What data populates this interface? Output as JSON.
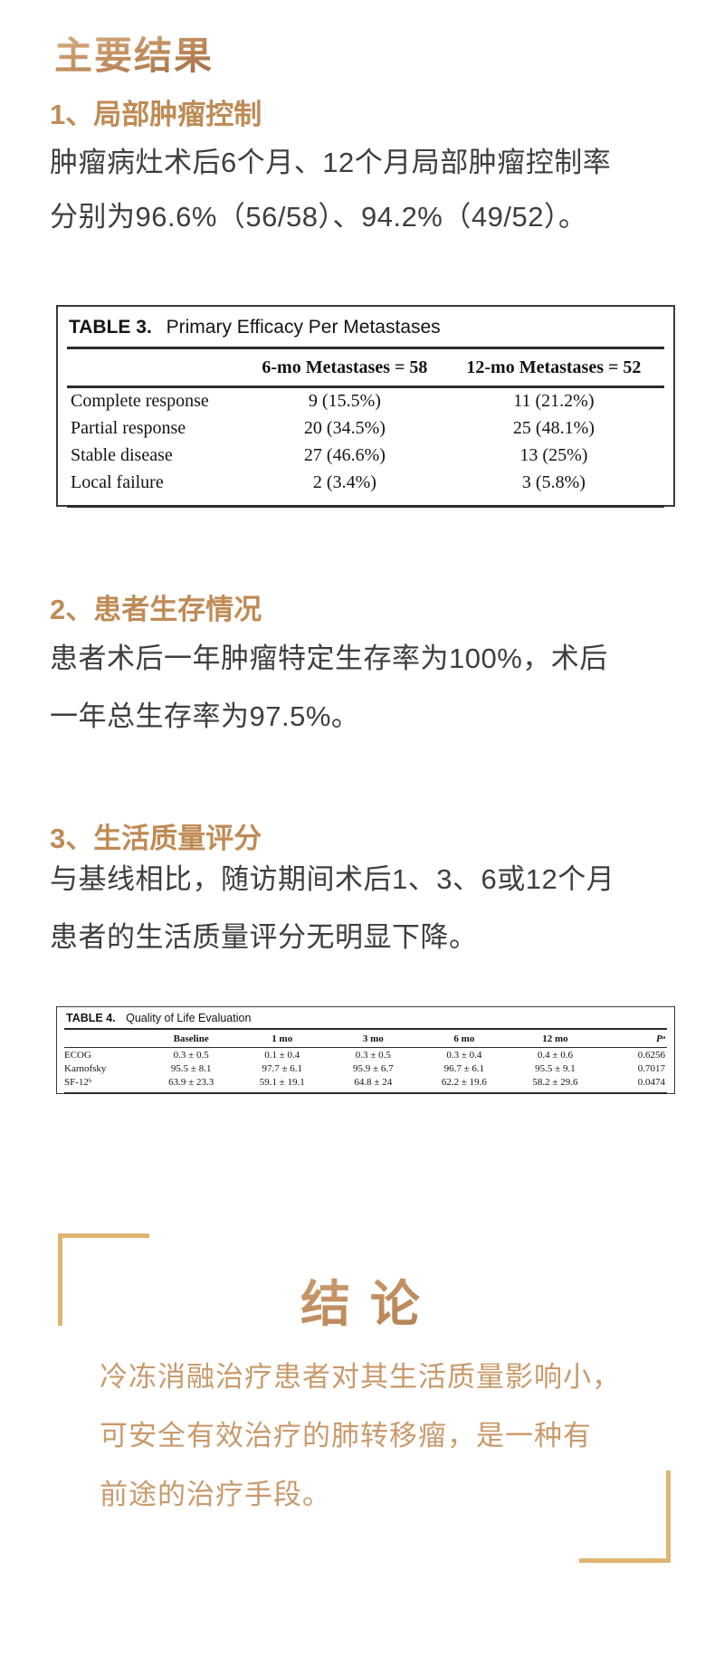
{
  "page": {
    "title": "主要结果",
    "background_color": "#ffffff",
    "accent_gold": "#bf8b55",
    "gradient_gold_light": "#dcb386",
    "gradient_gold_dark": "#9c6a3c",
    "bracket_color": "#dfb472",
    "body_text_color": "#3e3e3e",
    "conclusion_text_color": "#c89a6b"
  },
  "sections": [
    {
      "heading": "1、局部肿瘤控制",
      "lines": [
        "肿瘤病灶术后6个月、12个月局部肿瘤控制率",
        "分别为96.6%（56/58）、94.2%（49/52）。"
      ]
    },
    {
      "heading": "2、患者生存情况",
      "lines": [
        "患者术后一年肿瘤特定生存率为100%，术后",
        "一年总生存率为97.5%。"
      ]
    },
    {
      "heading": "3、生活质量评分",
      "lines": [
        "与基线相比，随访期间术后1、3、6或12个月",
        "患者的生活质量评分无明显下降。"
      ]
    }
  ],
  "table3": {
    "label": "TABLE 3.",
    "title": "Primary Efficacy Per Metastases",
    "col_headers": [
      "6-mo Metastases = 58",
      "12-mo Metastases = 52"
    ],
    "rows": [
      {
        "name": "Complete response",
        "m6": "9 (15.5%)",
        "m12": "11 (21.2%)"
      },
      {
        "name": "Partial response",
        "m6": "20 (34.5%)",
        "m12": "25 (48.1%)"
      },
      {
        "name": "Stable disease",
        "m6": "27 (46.6%)",
        "m12": "13 (25%)"
      },
      {
        "name": "Local failure",
        "m6": "2 (3.4%)",
        "m12": "3 (5.8%)"
      }
    ]
  },
  "table4": {
    "label": "TABLE 4.",
    "title": "Quality of Life Evaluation",
    "col_headers": [
      "Baseline",
      "1 mo",
      "3 mo",
      "6 mo",
      "12 mo",
      "Pᵃ"
    ],
    "rows": [
      {
        "name": "ECOG",
        "baseline": "0.3 ± 0.5",
        "mo1": "0.1 ± 0.4",
        "mo3": "0.3 ± 0.5",
        "mo6": "0.3 ± 0.4",
        "mo12": "0.4 ± 0.6",
        "p": "0.6256"
      },
      {
        "name": "Karnofsky",
        "baseline": "95.5 ± 8.1",
        "mo1": "97.7 ± 6.1",
        "mo3": "95.9 ± 6.7",
        "mo6": "96.7 ± 6.1",
        "mo12": "95.5 ± 9.1",
        "p": "0.7017"
      },
      {
        "name": "SF-12ᵇ",
        "baseline": "63.9 ± 23.3",
        "mo1": "59.1 ± 19.1",
        "mo3": "64.8 ± 24",
        "mo6": "62.2 ± 19.6",
        "mo12": "58.2 ± 29.6",
        "p": "0.0474"
      }
    ]
  },
  "conclusion": {
    "title": "结 论",
    "lines": [
      "冷冻消融治疗患者对其生活质量影响小，",
      "可安全有效治疗的肺转移瘤，是一种有",
      "前途的治疗手段。"
    ]
  }
}
